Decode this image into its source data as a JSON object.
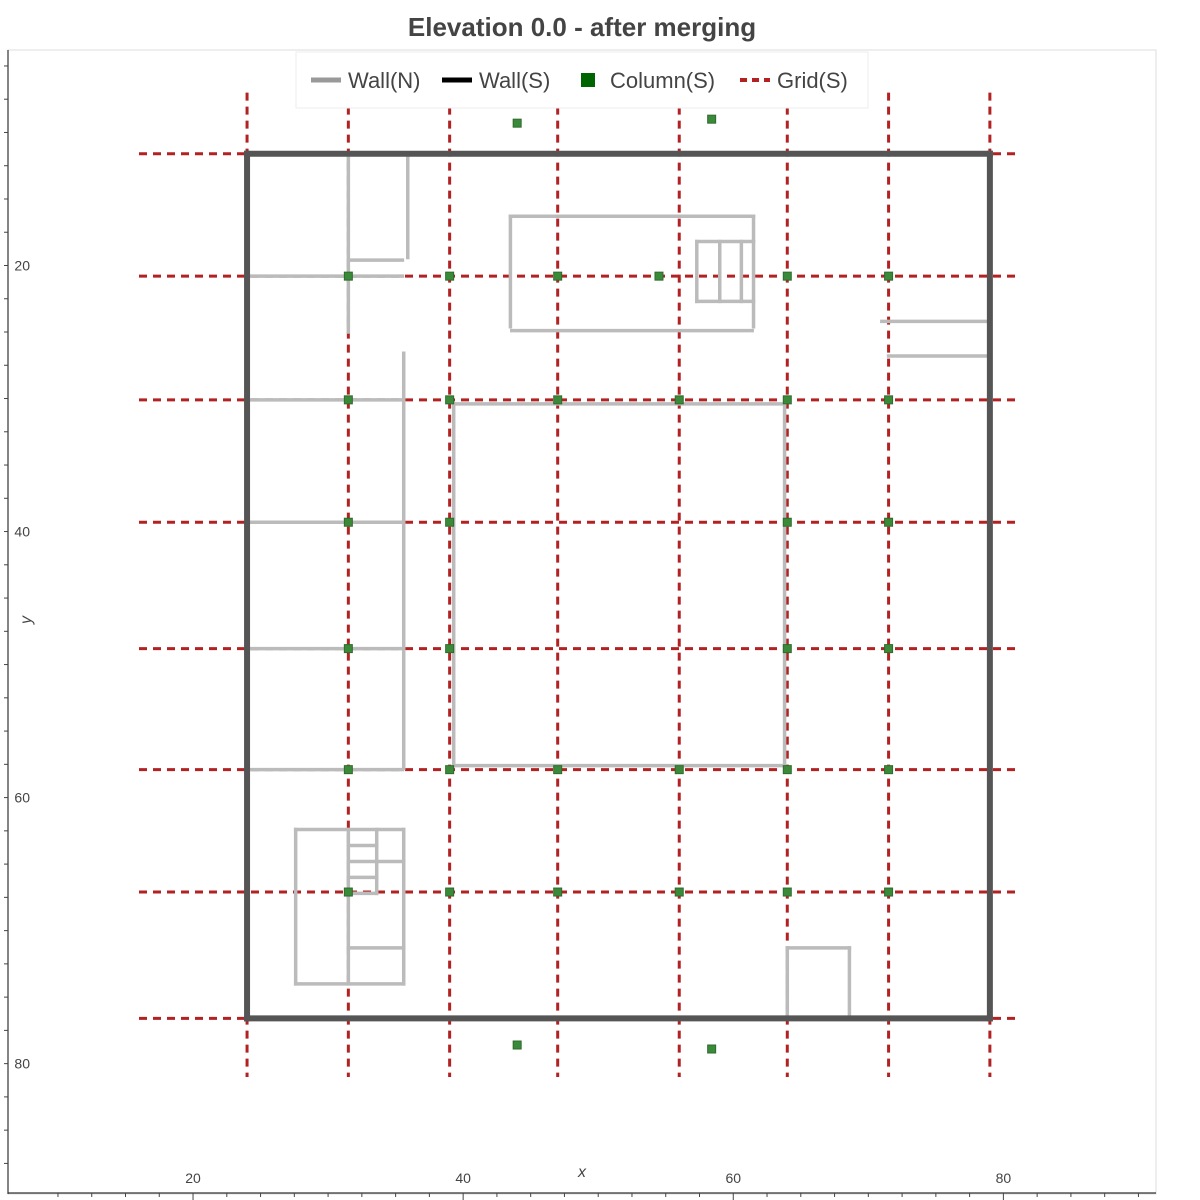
{
  "chart_data": {
    "type": "line",
    "title": "Elevation 0.0 - after merging",
    "xlabel": "x",
    "ylabel": "y",
    "xlim": [
      6.3,
      91.3
    ],
    "ylim": [
      3.8,
      89.8
    ],
    "y_inverted": true,
    "x_ticks": [
      20,
      40,
      60,
      80
    ],
    "y_ticks": [
      20,
      40,
      60,
      80
    ],
    "x_tick_labels": [
      "20",
      "40",
      "60",
      "80"
    ],
    "y_tick_labels": [
      "20",
      "40",
      "60",
      "80"
    ],
    "legend_position": "top-center",
    "grid": false,
    "legend": [
      {
        "label": "Wall(N)",
        "color": "#999999",
        "kind": "line"
      },
      {
        "label": "Wall(S)",
        "color": "#000000",
        "kind": "line"
      },
      {
        "label": "Column(S)",
        "color": "#006400",
        "kind": "square"
      },
      {
        "label": "Grid(S)",
        "color": "#b22222",
        "kind": "dashed"
      }
    ],
    "series": [
      {
        "name": "Wall(S)",
        "color": "#555555",
        "segments": [
          [
            [
              24.0,
              11.6
            ],
            [
              79.0,
              11.6
            ]
          ],
          [
            [
              79.0,
              11.6
            ],
            [
              79.0,
              76.6
            ]
          ],
          [
            [
              79.0,
              76.6
            ],
            [
              24.0,
              76.6
            ]
          ],
          [
            [
              24.0,
              76.6
            ],
            [
              24.0,
              11.6
            ]
          ]
        ]
      },
      {
        "name": "Wall(N)",
        "color": "#bbbbbb",
        "segments": [
          [
            [
              31.5,
              11.6
            ],
            [
              31.5,
              25.0
            ]
          ],
          [
            [
              31.5,
              19.6
            ],
            [
              35.5,
              19.6
            ]
          ],
          [
            [
              35.9,
              11.6
            ],
            [
              35.9,
              19.4
            ]
          ],
          [
            [
              24.0,
              20.8
            ],
            [
              35.5,
              20.8
            ]
          ],
          [
            [
              43.5,
              16.3
            ],
            [
              61.5,
              16.3
            ]
          ],
          [
            [
              43.5,
              16.3
            ],
            [
              43.5,
              24.6
            ]
          ],
          [
            [
              43.6,
              24.9
            ],
            [
              61.4,
              24.9
            ]
          ],
          [
            [
              61.5,
              16.3
            ],
            [
              61.5,
              24.6
            ]
          ],
          [
            [
              57.3,
              18.2
            ],
            [
              61.5,
              18.2
            ]
          ],
          [
            [
              57.3,
              18.2
            ],
            [
              57.3,
              22.7
            ]
          ],
          [
            [
              57.3,
              22.7
            ],
            [
              61.5,
              22.7
            ]
          ],
          [
            [
              59.0,
              18.2
            ],
            [
              59.0,
              22.7
            ]
          ],
          [
            [
              60.6,
              18.2
            ],
            [
              60.6,
              22.7
            ]
          ],
          [
            [
              71.0,
              24.2
            ],
            [
              79.0,
              24.2
            ]
          ],
          [
            [
              71.5,
              26.8
            ],
            [
              79.0,
              26.8
            ]
          ],
          [
            [
              24.0,
              30.1
            ],
            [
              35.5,
              30.1
            ]
          ],
          [
            [
              35.6,
              26.6
            ],
            [
              35.6,
              57.8
            ]
          ],
          [
            [
              24.0,
              39.3
            ],
            [
              35.5,
              39.3
            ]
          ],
          [
            [
              24.0,
              48.8
            ],
            [
              35.5,
              48.8
            ]
          ],
          [
            [
              24.0,
              57.9
            ],
            [
              35.5,
              57.9
            ]
          ],
          [
            [
              39.3,
              30.4
            ],
            [
              63.8,
              30.4
            ]
          ],
          [
            [
              63.8,
              30.4
            ],
            [
              63.8,
              57.6
            ]
          ],
          [
            [
              63.8,
              57.6
            ],
            [
              39.3,
              57.6
            ]
          ],
          [
            [
              39.3,
              57.6
            ],
            [
              39.3,
              30.4
            ]
          ],
          [
            [
              27.6,
              62.4
            ],
            [
              35.6,
              62.4
            ]
          ],
          [
            [
              27.6,
              62.4
            ],
            [
              27.6,
              74.0
            ]
          ],
          [
            [
              27.6,
              74.0
            ],
            [
              35.6,
              74.0
            ]
          ],
          [
            [
              35.6,
              62.4
            ],
            [
              35.6,
              74.0
            ]
          ],
          [
            [
              31.5,
              62.4
            ],
            [
              31.5,
              74.0
            ]
          ],
          [
            [
              31.5,
              63.6
            ],
            [
              33.6,
              63.6
            ]
          ],
          [
            [
              31.5,
              64.8
            ],
            [
              35.6,
              64.8
            ]
          ],
          [
            [
              31.5,
              66.0
            ],
            [
              33.6,
              66.0
            ]
          ],
          [
            [
              33.6,
              62.4
            ],
            [
              33.6,
              67.2
            ]
          ],
          [
            [
              31.5,
              67.2
            ],
            [
              33.6,
              67.2
            ]
          ],
          [
            [
              31.5,
              71.3
            ],
            [
              35.6,
              71.3
            ]
          ],
          [
            [
              64.0,
              71.3
            ],
            [
              68.6,
              71.3
            ]
          ],
          [
            [
              68.6,
              71.3
            ],
            [
              68.6,
              76.6
            ]
          ],
          [
            [
              64.0,
              71.3
            ],
            [
              64.0,
              76.6
            ]
          ]
        ]
      },
      {
        "name": "Grid(S)",
        "color": "#b22222",
        "x_positions": [
          24.0,
          31.5,
          39.0,
          47.0,
          56.0,
          64.0,
          71.5,
          79.0
        ],
        "y_positions": [
          11.6,
          20.8,
          30.1,
          39.3,
          48.8,
          57.9,
          67.1,
          76.6
        ],
        "x_extent": [
          16.0,
          81.0
        ],
        "y_extent": [
          7.0,
          81.0
        ]
      },
      {
        "name": "Column(S)",
        "color": "#3a8a3a",
        "points": [
          [
            44.0,
            9.3
          ],
          [
            58.4,
            9.0
          ],
          [
            31.5,
            20.8
          ],
          [
            39.0,
            20.8
          ],
          [
            47.0,
            20.8
          ],
          [
            54.5,
            20.8
          ],
          [
            64.0,
            20.8
          ],
          [
            71.5,
            20.8
          ],
          [
            31.5,
            30.1
          ],
          [
            39.0,
            30.1
          ],
          [
            47.0,
            30.1
          ],
          [
            56.0,
            30.1
          ],
          [
            64.0,
            30.1
          ],
          [
            71.5,
            30.1
          ],
          [
            31.5,
            39.3
          ],
          [
            39.0,
            39.3
          ],
          [
            64.0,
            39.3
          ],
          [
            71.5,
            39.3
          ],
          [
            31.5,
            48.8
          ],
          [
            39.0,
            48.8
          ],
          [
            64.0,
            48.8
          ],
          [
            71.5,
            48.8
          ],
          [
            31.5,
            57.9
          ],
          [
            39.0,
            57.9
          ],
          [
            47.0,
            57.9
          ],
          [
            56.0,
            57.9
          ],
          [
            64.0,
            57.9
          ],
          [
            71.5,
            57.9
          ],
          [
            31.5,
            67.1
          ],
          [
            39.0,
            67.1
          ],
          [
            47.0,
            67.1
          ],
          [
            56.0,
            67.1
          ],
          [
            64.0,
            67.1
          ],
          [
            71.5,
            67.1
          ],
          [
            44.0,
            78.6
          ],
          [
            58.4,
            78.9
          ]
        ]
      }
    ]
  }
}
